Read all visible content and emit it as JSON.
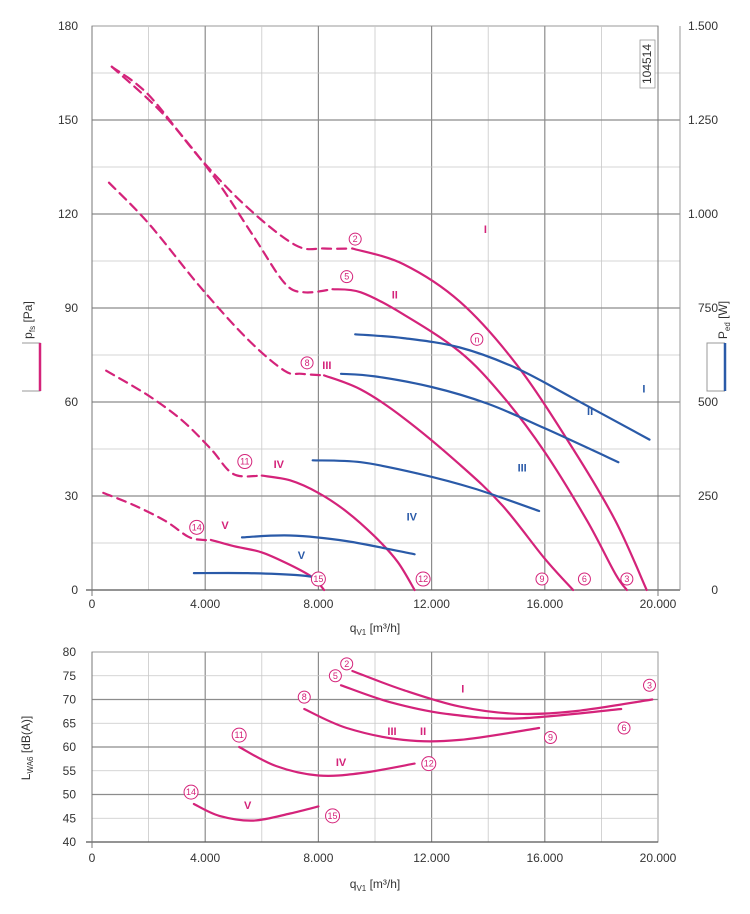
{
  "chart_data": [
    {
      "type": "line",
      "id": "performance",
      "code": "104514",
      "xlabel": "q",
      "xlabel_sub": "V1",
      "xlabel_unit": " [m³/h]",
      "ylabel": "p",
      "ylabel_sub": "fs",
      "ylabel_unit": " [Pa]",
      "y2label": "P",
      "y2label_sub": "ed",
      "y2label_unit": " [W]",
      "xlim": [
        0,
        20000
      ],
      "ylim": [
        0,
        180
      ],
      "y2lim": [
        0,
        1500
      ],
      "x_ticks": [
        0,
        4000,
        8000,
        12000,
        16000,
        20000
      ],
      "x_tick_labels": [
        "0",
        "4.000",
        "8.000",
        "12.000",
        "16.000",
        "20.000"
      ],
      "y_ticks": [
        0,
        30,
        60,
        90,
        120,
        150,
        180
      ],
      "y_tick_labels": [
        "0",
        "30",
        "60",
        "90",
        "120",
        "150",
        "180"
      ],
      "y2_ticks": [
        0,
        250,
        500,
        750,
        1000,
        1250,
        1500
      ],
      "y2_tick_labels": [
        "0",
        "250",
        "500",
        "750",
        "1.000",
        "1.250",
        "1.500"
      ],
      "grid": true,
      "pressure_color": "#d4237a",
      "power_color": "#2a5aa8",
      "pressure_series": [
        {
          "dashed": [
            [
              700,
              167
            ],
            [
              2000,
              158
            ],
            [
              3800,
              138
            ],
            [
              5500,
              122
            ],
            [
              7200,
              110
            ],
            [
              8200,
              109
            ],
            [
              9200,
              109
            ]
          ],
          "solid": [
            [
              9200,
              109
            ],
            [
              11000,
              104
            ],
            [
              13000,
              92
            ],
            [
              15000,
              72
            ],
            [
              17000,
              45
            ],
            [
              18500,
              22
            ],
            [
              19600,
              0
            ]
          ]
        },
        {
          "dashed": [
            [
              600,
              130
            ],
            [
              2000,
              117
            ],
            [
              3800,
              97
            ],
            [
              5500,
              80
            ],
            [
              6800,
              70
            ],
            [
              7400,
              69
            ],
            [
              8200,
              68.5
            ]
          ],
          "solid": [
            [
              8200,
              68.5
            ],
            [
              9500,
              64
            ],
            [
              11000,
              55
            ],
            [
              13000,
              40
            ],
            [
              14500,
              27
            ],
            [
              16000,
              10
            ],
            [
              17000,
              0
            ]
          ]
        },
        {
          "dashed": [
            [
              500,
              70
            ],
            [
              2000,
              62
            ],
            [
              3200,
              54
            ],
            [
              4200,
              45
            ],
            [
              5000,
              37
            ],
            [
              6000,
              36.5
            ]
          ],
          "solid": [
            [
              6000,
              36.5
            ],
            [
              7000,
              35
            ],
            [
              8000,
              31
            ],
            [
              9000,
              25
            ],
            [
              10000,
              17
            ],
            [
              10800,
              9
            ],
            [
              11400,
              0
            ]
          ]
        },
        {
          "dashed": [
            [
              400,
              31
            ],
            [
              1500,
              27
            ],
            [
              2600,
              22
            ],
            [
              3400,
              17
            ],
            [
              3900,
              16
            ],
            [
              4200,
              16
            ]
          ],
          "solid": [
            [
              4200,
              16
            ],
            [
              5000,
              14
            ],
            [
              6000,
              12
            ],
            [
              7000,
              8
            ],
            [
              7800,
              4
            ],
            [
              8200,
              0
            ]
          ]
        },
        {
          "dashed": [
            [
              700,
              167
            ],
            [
              2500,
              152
            ],
            [
              4300,
              132
            ],
            [
              5700,
              113
            ],
            [
              6800,
              98
            ],
            [
              7500,
              95
            ],
            [
              8500,
              96
            ]
          ],
          "solid": [
            [
              8500,
              96
            ],
            [
              9500,
              95
            ],
            [
              11000,
              88
            ],
            [
              13000,
              76
            ],
            [
              14500,
              62
            ],
            [
              16000,
              44
            ],
            [
              17500,
              22
            ],
            [
              18500,
              5
            ],
            [
              18900,
              0
            ]
          ]
        }
      ],
      "power_series": [
        [
          [
            9300,
            680
          ],
          [
            11000,
            670
          ],
          [
            13000,
            645
          ],
          [
            15000,
            590
          ],
          [
            17000,
            510
          ],
          [
            19700,
            400
          ]
        ],
        [
          [
            8800,
            575
          ],
          [
            10000,
            568
          ],
          [
            12000,
            540
          ],
          [
            14000,
            495
          ],
          [
            16000,
            430
          ],
          [
            18600,
            340
          ]
        ],
        [
          [
            7800,
            345
          ],
          [
            9500,
            340
          ],
          [
            11500,
            310
          ],
          [
            13500,
            270
          ],
          [
            15800,
            210
          ]
        ],
        [
          [
            5300,
            140
          ],
          [
            7000,
            145
          ],
          [
            9000,
            130
          ],
          [
            11400,
            95
          ]
        ],
        [
          [
            3600,
            45
          ],
          [
            5500,
            45
          ],
          [
            7200,
            40
          ],
          [
            8100,
            32
          ]
        ]
      ],
      "roman_labels": [
        {
          "text": "I",
          "x": 13900,
          "y": 114
        },
        {
          "text": "II",
          "x": 10700,
          "y": 93
        },
        {
          "text": "III",
          "x": 8300,
          "y": 70.5
        },
        {
          "text": "IV",
          "x": 6600,
          "y": 39
        },
        {
          "text": "V",
          "x": 4700,
          "y": 19.5
        },
        {
          "text": "I",
          "x": 19500,
          "y": 525
        },
        {
          "text": "II",
          "x": 17600,
          "y": 465
        },
        {
          "text": "III",
          "x": 15200,
          "y": 315
        },
        {
          "text": "IV",
          "x": 11300,
          "y": 185
        },
        {
          "text": "V",
          "x": 7400,
          "y": 83
        }
      ],
      "circle_labels": [
        {
          "text": "2",
          "x": 9300,
          "y": 112
        },
        {
          "text": "5",
          "x": 9000,
          "y": 100
        },
        {
          "text": "8",
          "x": 7600,
          "y": 72.5
        },
        {
          "text": "11",
          "x": 5400,
          "y": 41
        },
        {
          "text": "14",
          "x": 3700,
          "y": 20
        },
        {
          "text": "3",
          "x": 18900,
          "y": 3.5
        },
        {
          "text": "6",
          "x": 17400,
          "y": 3.5
        },
        {
          "text": "9",
          "x": 15900,
          "y": 3.5
        },
        {
          "text": "12",
          "x": 11700,
          "y": 3.5
        },
        {
          "text": "15",
          "x": 8000,
          "y": 3.5
        },
        {
          "text": "n",
          "x": 13600,
          "y": 80
        }
      ],
      "legend_left": {
        "color": "#d4237a"
      },
      "legend_right": {
        "color": "#2a5aa8"
      }
    },
    {
      "type": "line",
      "id": "sound",
      "xlabel": "q",
      "xlabel_sub": "V1",
      "xlabel_unit": " [m³/h]",
      "ylabel": "L",
      "ylabel_sub": "WA6",
      "ylabel_unit": " [dB(A)]",
      "xlim": [
        0,
        20000
      ],
      "ylim": [
        40,
        80
      ],
      "x_ticks": [
        0,
        4000,
        8000,
        12000,
        16000,
        20000
      ],
      "x_tick_labels": [
        "0",
        "4.000",
        "8.000",
        "12.000",
        "16.000",
        "20.000"
      ],
      "y_ticks": [
        40,
        45,
        50,
        55,
        60,
        65,
        70,
        75,
        80
      ],
      "y_tick_labels": [
        "40",
        "45",
        "50",
        "55",
        "60",
        "65",
        "70",
        "75",
        "80"
      ],
      "grid": true,
      "color": "#d4237a",
      "series": [
        [
          [
            9200,
            76
          ],
          [
            11000,
            72
          ],
          [
            13000,
            68.5
          ],
          [
            15000,
            67
          ],
          [
            17000,
            67.5
          ],
          [
            19800,
            70
          ]
        ],
        [
          [
            8800,
            73
          ],
          [
            10500,
            69.5
          ],
          [
            12500,
            67
          ],
          [
            15000,
            66
          ],
          [
            18700,
            68
          ]
        ],
        [
          [
            7500,
            68
          ],
          [
            9000,
            64
          ],
          [
            11000,
            61.5
          ],
          [
            13000,
            61.5
          ],
          [
            15800,
            64
          ]
        ],
        [
          [
            5200,
            60
          ],
          [
            6500,
            56
          ],
          [
            8000,
            54
          ],
          [
            9500,
            54.5
          ],
          [
            11400,
            56.5
          ]
        ],
        [
          [
            3600,
            48
          ],
          [
            4500,
            45.5
          ],
          [
            5700,
            44.5
          ],
          [
            7000,
            46
          ],
          [
            8000,
            47.5
          ]
        ]
      ],
      "roman_labels": [
        {
          "text": "I",
          "x": 13100,
          "y": 71.5
        },
        {
          "text": "II",
          "x": 11700,
          "y": 62.5
        },
        {
          "text": "III",
          "x": 10600,
          "y": 62.5
        },
        {
          "text": "IV",
          "x": 8800,
          "y": 56
        },
        {
          "text": "V",
          "x": 5500,
          "y": 47
        }
      ],
      "circle_labels": [
        {
          "text": "2",
          "x": 9000,
          "y": 77.5
        },
        {
          "text": "5",
          "x": 8600,
          "y": 75
        },
        {
          "text": "8",
          "x": 7500,
          "y": 70.5
        },
        {
          "text": "11",
          "x": 5200,
          "y": 62.5
        },
        {
          "text": "14",
          "x": 3500,
          "y": 50.5
        },
        {
          "text": "3",
          "x": 19700,
          "y": 73
        },
        {
          "text": "6",
          "x": 18800,
          "y": 64
        },
        {
          "text": "9",
          "x": 16200,
          "y": 62
        },
        {
          "text": "12",
          "x": 11900,
          "y": 56.5
        },
        {
          "text": "15",
          "x": 8500,
          "y": 45.5
        }
      ]
    }
  ]
}
